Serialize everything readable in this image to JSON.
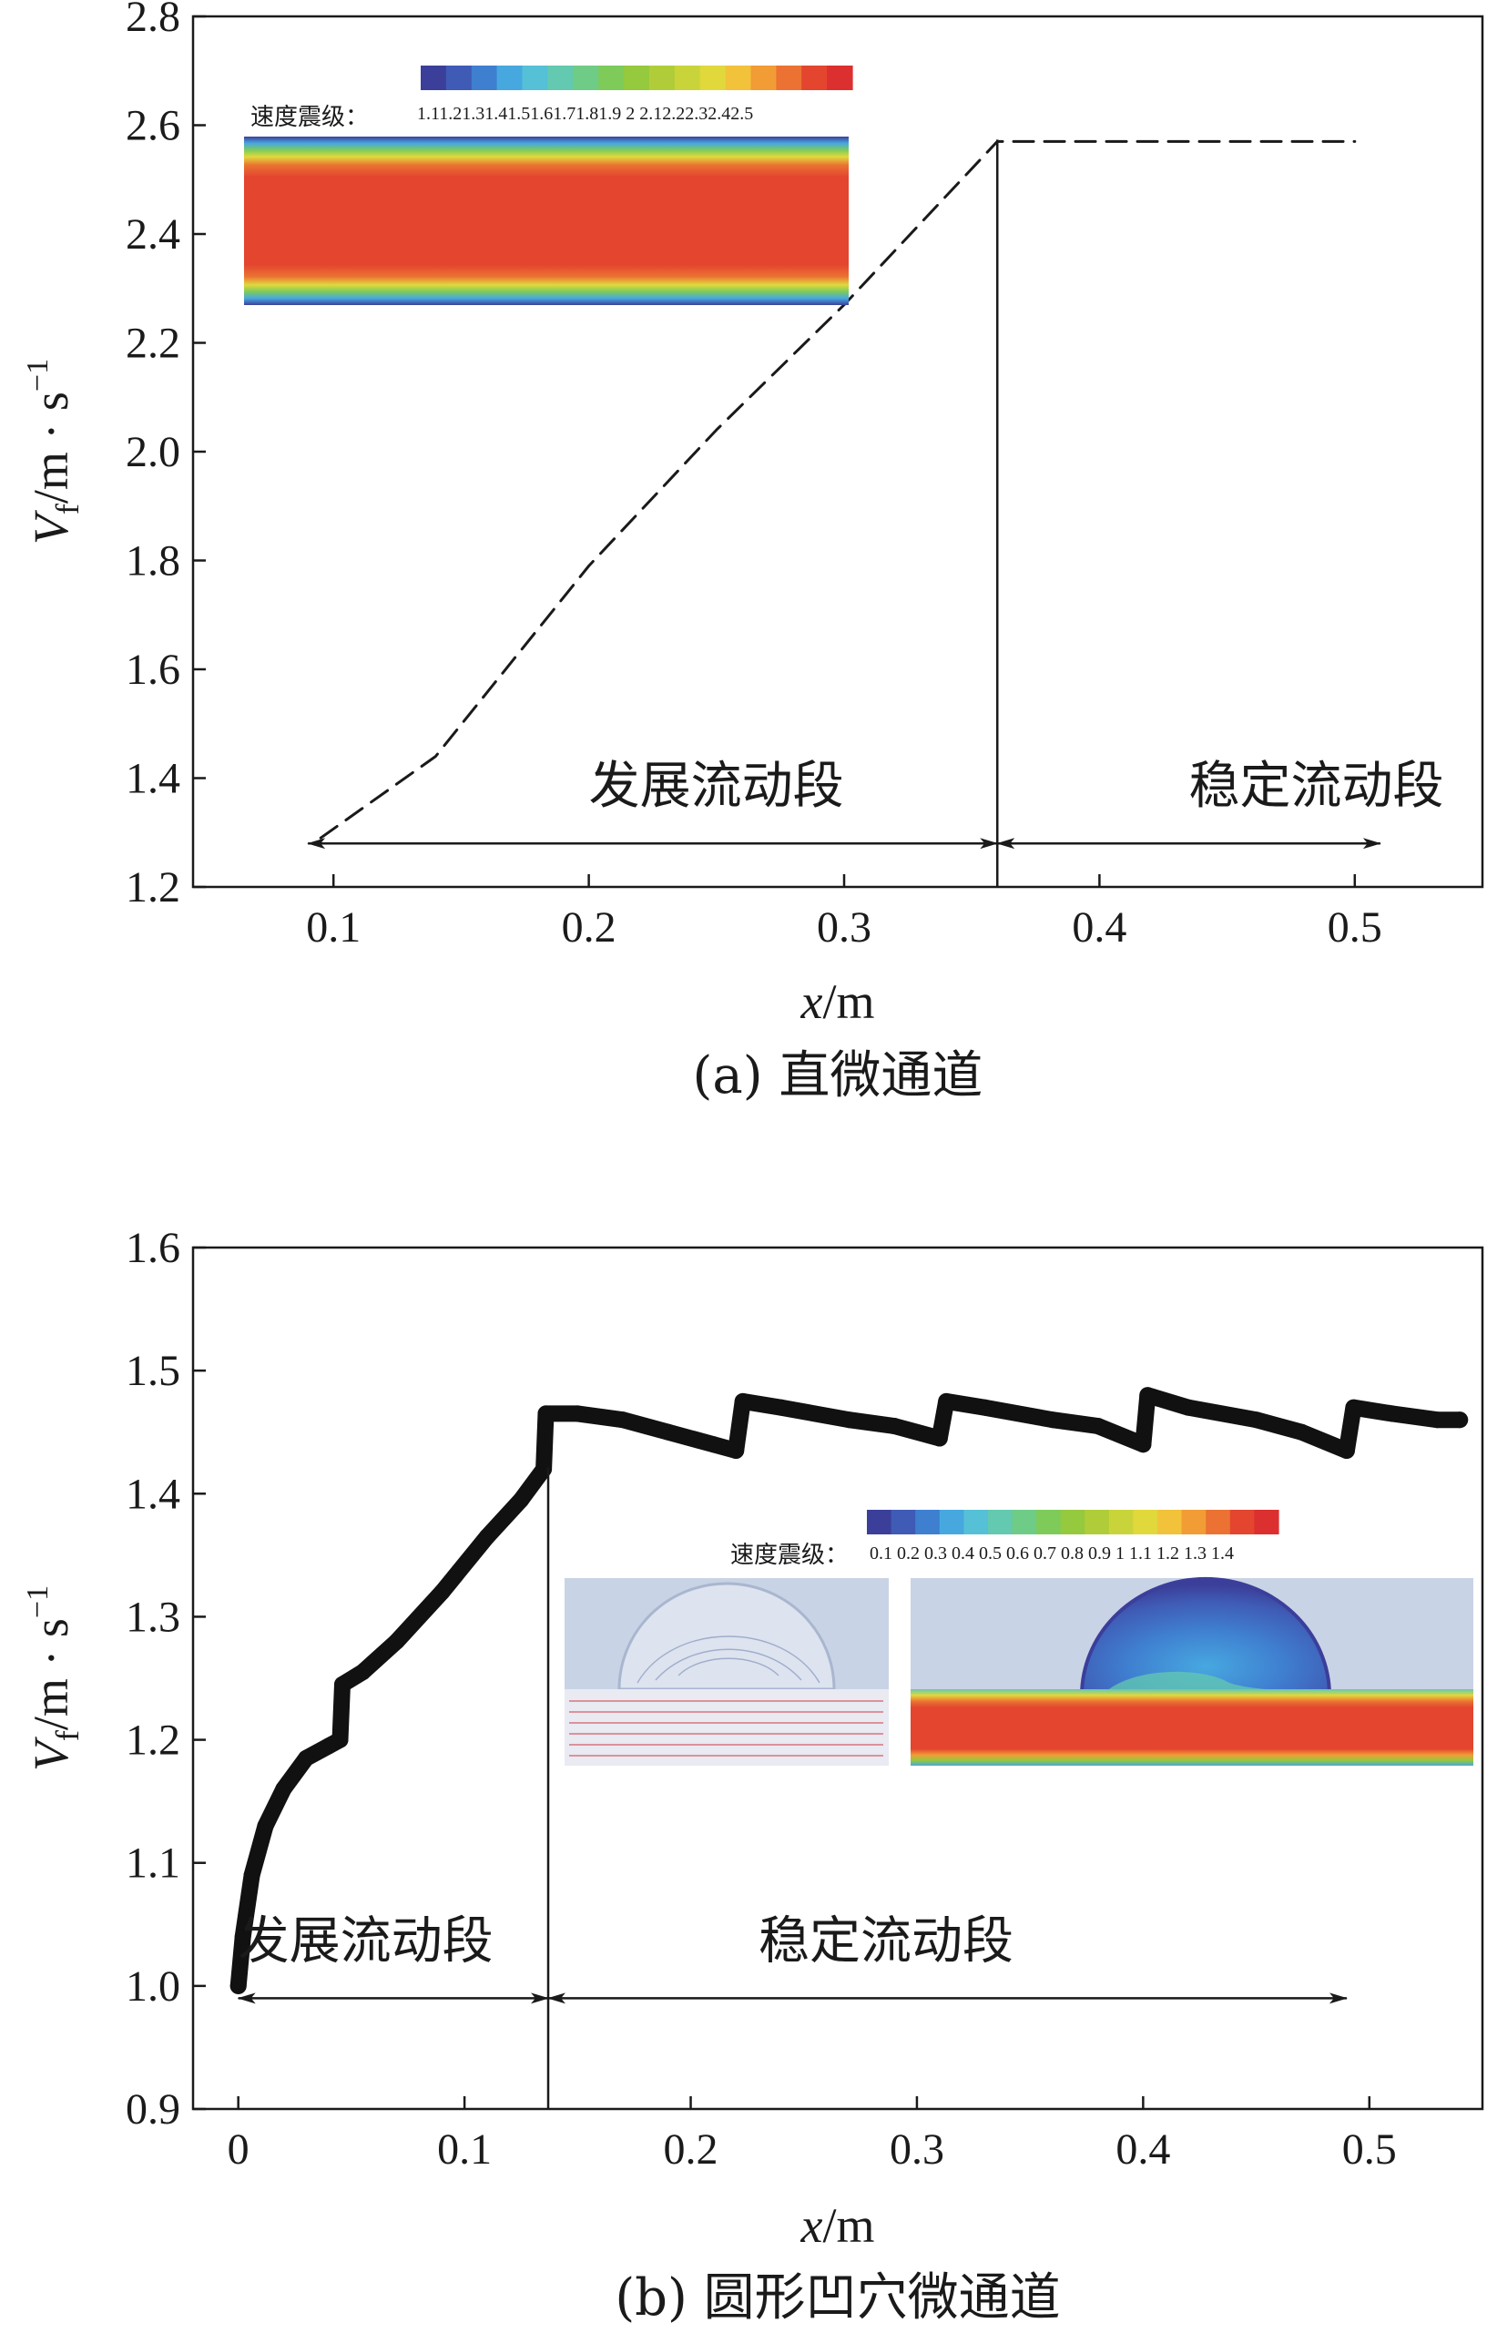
{
  "chart_data": [
    {
      "type": "line",
      "panel_caption": "(a) 直微通道",
      "xlabel_italic": "x",
      "xlabel_unit": "/m",
      "ylabel_sym": "V",
      "ylabel_sub": "f",
      "ylabel_unit": "/m · s",
      "ylabel_exp": "−1",
      "xlim": [
        0.045,
        0.55
      ],
      "ylim": [
        1.2,
        2.8
      ],
      "xticks": [
        0.1,
        0.2,
        0.3,
        0.4,
        0.5
      ],
      "xtick_labels": [
        "0.1",
        "0.2",
        "0.3",
        "0.4",
        "0.5"
      ],
      "yticks": [
        1.2,
        1.4,
        1.6,
        1.8,
        2.0,
        2.2,
        2.4,
        2.6,
        2.8
      ],
      "ytick_labels": [
        "1.2",
        "1.4",
        "1.6",
        "1.8",
        "2.0",
        "2.2",
        "2.4",
        "2.6",
        "2.8"
      ],
      "series": [
        {
          "style": "dashed",
          "color": "#1a1a1a",
          "points": [
            [
              0.095,
              1.29
            ],
            [
              0.14,
              1.44
            ],
            [
              0.2,
              1.79
            ],
            [
              0.25,
              2.04
            ],
            [
              0.3,
              2.27
            ],
            [
              0.36,
              2.57
            ],
            [
              0.4,
              2.57
            ],
            [
              0.5,
              2.57
            ]
          ]
        }
      ],
      "divider_x": 0.36,
      "regions": [
        {
          "label": "发展流动段",
          "x_from": 0.09,
          "x_to": 0.36,
          "label_x": 0.2
        },
        {
          "label": "稳定流动段",
          "x_from": 0.36,
          "x_to": 0.51,
          "label_x": 0.435
        }
      ],
      "arrow_y": 1.28,
      "inset_colorbar": {
        "title": "速度震级：",
        "ticks": "1.11.21.31.41.51.61.71.81.9  2  2.12.22.32.42.5",
        "colors": [
          "#3b3f9a",
          "#3f5bb5",
          "#3f7fd0",
          "#47a8e0",
          "#55c0d6",
          "#63c9b0",
          "#6fcc86",
          "#7ecb5a",
          "#95c93e",
          "#b0cd39",
          "#c9d43a",
          "#e1d83c",
          "#f1c23a",
          "#f19c35",
          "#eb7232",
          "#e3452f",
          "#dc2f2f"
        ]
      }
    },
    {
      "type": "line",
      "panel_caption": "(b) 圆形凹穴微通道",
      "xlabel_italic": "x",
      "xlabel_unit": "/m",
      "ylabel_sym": "V",
      "ylabel_sub": "f",
      "ylabel_unit": "/m · s",
      "ylabel_exp": "−1",
      "xlim": [
        -0.02,
        0.55
      ],
      "ylim": [
        0.9,
        1.6
      ],
      "xticks": [
        0,
        0.1,
        0.2,
        0.3,
        0.4,
        0.5
      ],
      "xtick_labels": [
        "0",
        "0.1",
        "0.2",
        "0.3",
        "0.4",
        "0.5"
      ],
      "yticks": [
        0.9,
        1.0,
        1.1,
        1.2,
        1.3,
        1.4,
        1.5,
        1.6
      ],
      "ytick_labels": [
        "0.9",
        "1.0",
        "1.1",
        "1.2",
        "1.3",
        "1.4",
        "1.5",
        "1.6"
      ],
      "series": [
        {
          "style": "thick",
          "color": "#111111",
          "points": [
            [
              0.0,
              1.0
            ],
            [
              0.002,
              1.04
            ],
            [
              0.006,
              1.09
            ],
            [
              0.012,
              1.13
            ],
            [
              0.02,
              1.16
            ],
            [
              0.03,
              1.185
            ],
            [
              0.04,
              1.195
            ],
            [
              0.045,
              1.2
            ],
            [
              0.046,
              1.245
            ],
            [
              0.055,
              1.255
            ],
            [
              0.07,
              1.28
            ],
            [
              0.09,
              1.32
            ],
            [
              0.11,
              1.365
            ],
            [
              0.125,
              1.395
            ],
            [
              0.135,
              1.42
            ],
            [
              0.136,
              1.465
            ],
            [
              0.15,
              1.465
            ],
            [
              0.17,
              1.46
            ],
            [
              0.19,
              1.45
            ],
            [
              0.21,
              1.44
            ],
            [
              0.22,
              1.435
            ],
            [
              0.223,
              1.475
            ],
            [
              0.24,
              1.47
            ],
            [
              0.27,
              1.46
            ],
            [
              0.29,
              1.455
            ],
            [
              0.31,
              1.445
            ],
            [
              0.313,
              1.475
            ],
            [
              0.33,
              1.47
            ],
            [
              0.36,
              1.46
            ],
            [
              0.38,
              1.455
            ],
            [
              0.4,
              1.44
            ],
            [
              0.402,
              1.48
            ],
            [
              0.42,
              1.47
            ],
            [
              0.45,
              1.46
            ],
            [
              0.47,
              1.45
            ],
            [
              0.49,
              1.435
            ],
            [
              0.493,
              1.47
            ],
            [
              0.51,
              1.465
            ],
            [
              0.53,
              1.46
            ],
            [
              0.54,
              1.46
            ]
          ]
        }
      ],
      "divider_x": 0.137,
      "regions": [
        {
          "label": "发展流动段",
          "x_from": 0.0,
          "x_to": 0.137,
          "label_x": 0.0
        },
        {
          "label": "稳定流动段",
          "x_from": 0.137,
          "x_to": 0.49,
          "label_x": 0.23
        }
      ],
      "arrow_y": 0.99,
      "inset_colorbar": {
        "title": "速度震级：",
        "ticks": "0.1  0.2  0.3  0.4  0.5  0.6  0.7  0.8  0.9   1   1.1  1.2  1.3  1.4",
        "colors": [
          "#3b3f9a",
          "#3f5bb5",
          "#3f7fd0",
          "#47a8e0",
          "#55c0d6",
          "#63c9b0",
          "#6fcc86",
          "#7ecb5a",
          "#95c93e",
          "#b0cd39",
          "#c9d43a",
          "#e1d83c",
          "#f1c23a",
          "#f19c35",
          "#eb7232",
          "#e3452f",
          "#dc2f2f"
        ]
      }
    }
  ]
}
